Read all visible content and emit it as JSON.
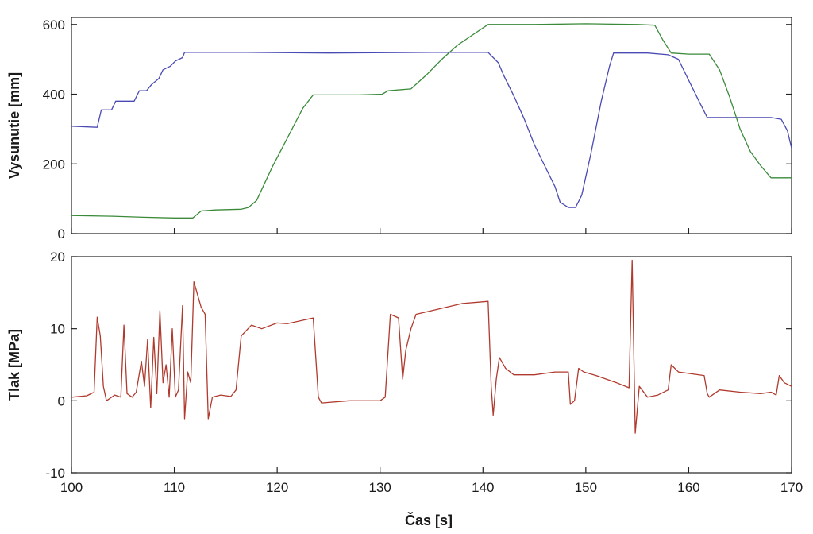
{
  "chart_data": [
    {
      "type": "line",
      "ylabel": "Vysunutie [mm]",
      "xlim": [
        100,
        170
      ],
      "ylim": [
        0,
        620
      ],
      "yticks": [
        "0",
        "200",
        "400",
        "600"
      ],
      "grid": false,
      "series": [
        {
          "color": "#4a4ab4",
          "points": [
            [
              100,
              308
            ],
            [
              102.5,
              305
            ],
            [
              102.9,
              355
            ],
            [
              103.9,
              355
            ],
            [
              104.3,
              380
            ],
            [
              106.1,
              380
            ],
            [
              106.6,
              410
            ],
            [
              107.3,
              410
            ],
            [
              107.8,
              428
            ],
            [
              108.5,
              445
            ],
            [
              108.9,
              470
            ],
            [
              109.6,
              480
            ],
            [
              110.1,
              495
            ],
            [
              110.8,
              505
            ],
            [
              111,
              520
            ],
            [
              117,
              520
            ],
            [
              125,
              518
            ],
            [
              135,
              520
            ],
            [
              140.5,
              520
            ],
            [
              141.5,
              490
            ],
            [
              142,
              455
            ],
            [
              143,
              395
            ],
            [
              144,
              330
            ],
            [
              145,
              255
            ],
            [
              146,
              195
            ],
            [
              147,
              135
            ],
            [
              147.5,
              90
            ],
            [
              148.3,
              75
            ],
            [
              149,
              75
            ],
            [
              149.6,
              110
            ],
            [
              150.5,
              230
            ],
            [
              151.5,
              380
            ],
            [
              152.3,
              480
            ],
            [
              152.7,
              518
            ],
            [
              156,
              518
            ],
            [
              158,
              513
            ],
            [
              159,
              500
            ],
            [
              160,
              440
            ],
            [
              161,
              380
            ],
            [
              161.8,
              333
            ],
            [
              163,
              333
            ],
            [
              168,
              333
            ],
            [
              169,
              328
            ],
            [
              169.6,
              295
            ],
            [
              170,
              245
            ]
          ]
        },
        {
          "color": "#3a8a3a",
          "points": [
            [
              100,
              52
            ],
            [
              104,
              50
            ],
            [
              107,
              47
            ],
            [
              110,
              45
            ],
            [
              111.8,
              45
            ],
            [
              112.6,
              65
            ],
            [
              114,
              68
            ],
            [
              116.5,
              70
            ],
            [
              117.2,
              75
            ],
            [
              118,
              95
            ],
            [
              119.5,
              190
            ],
            [
              121,
              275
            ],
            [
              122.5,
              360
            ],
            [
              123.5,
              398
            ],
            [
              125,
              398
            ],
            [
              128,
              398
            ],
            [
              130.2,
              400
            ],
            [
              130.8,
              410
            ],
            [
              133,
              415
            ],
            [
              134.5,
              455
            ],
            [
              136,
              500
            ],
            [
              137.5,
              540
            ],
            [
              139,
              570
            ],
            [
              140.5,
              600
            ],
            [
              145,
              600
            ],
            [
              150,
              602
            ],
            [
              155,
              600
            ],
            [
              156.7,
              598
            ],
            [
              157.5,
              555
            ],
            [
              158.3,
              518
            ],
            [
              160,
              515
            ],
            [
              162,
              515
            ],
            [
              163,
              470
            ],
            [
              164,
              390
            ],
            [
              165,
              300
            ],
            [
              166,
              235
            ],
            [
              167,
              195
            ],
            [
              168,
              160
            ],
            [
              170,
              160
            ]
          ]
        }
      ]
    },
    {
      "type": "line",
      "xlabel": "Čas [s]",
      "ylabel": "Tlak [MPa]",
      "xlim": [
        100,
        170
      ],
      "ylim": [
        -10,
        20
      ],
      "xticks": [
        "100",
        "110",
        "120",
        "130",
        "140",
        "150",
        "160",
        "170"
      ],
      "yticks": [
        "-10",
        "0",
        "10",
        "20"
      ],
      "grid": false,
      "series": [
        {
          "color": "#b03a2e",
          "points": [
            [
              100,
              0.5
            ],
            [
              101.5,
              0.7
            ],
            [
              102.2,
              1.2
            ],
            [
              102.5,
              11.6
            ],
            [
              102.8,
              9.0
            ],
            [
              103.1,
              2.0
            ],
            [
              103.4,
              0.0
            ],
            [
              104.2,
              0.8
            ],
            [
              104.8,
              0.5
            ],
            [
              105.1,
              10.5
            ],
            [
              105.4,
              1.0
            ],
            [
              105.9,
              0.5
            ],
            [
              106.3,
              1.2
            ],
            [
              106.8,
              5.5
            ],
            [
              107.1,
              2.0
            ],
            [
              107.4,
              8.5
            ],
            [
              107.7,
              -1.0
            ],
            [
              108.0,
              8.8
            ],
            [
              108.3,
              1.0
            ],
            [
              108.6,
              12.5
            ],
            [
              108.9,
              2.5
            ],
            [
              109.2,
              5.0
            ],
            [
              109.5,
              0.5
            ],
            [
              109.8,
              10.0
            ],
            [
              110.1,
              0.5
            ],
            [
              110.4,
              1.5
            ],
            [
              110.8,
              13.2
            ],
            [
              111.0,
              -2.5
            ],
            [
              111.3,
              4.0
            ],
            [
              111.6,
              2.5
            ],
            [
              111.9,
              16.5
            ],
            [
              112.3,
              14.5
            ],
            [
              112.6,
              13.0
            ],
            [
              113.0,
              12.0
            ],
            [
              113.3,
              -2.5
            ],
            [
              113.7,
              0.5
            ],
            [
              114.5,
              0.8
            ],
            [
              115.5,
              0.6
            ],
            [
              116.0,
              1.5
            ],
            [
              116.5,
              9.0
            ],
            [
              117.5,
              10.5
            ],
            [
              118.5,
              10.0
            ],
            [
              120,
              10.8
            ],
            [
              121,
              10.7
            ],
            [
              123.5,
              11.5
            ],
            [
              124.0,
              0.5
            ],
            [
              124.3,
              -0.3
            ],
            [
              127,
              0.0
            ],
            [
              130,
              0.0
            ],
            [
              130.5,
              0.5
            ],
            [
              131.0,
              12.0
            ],
            [
              131.8,
              11.5
            ],
            [
              132.2,
              3.0
            ],
            [
              132.5,
              7.0
            ],
            [
              133.0,
              10.0
            ],
            [
              133.5,
              12.0
            ],
            [
              135,
              12.5
            ],
            [
              138,
              13.5
            ],
            [
              140.5,
              13.8
            ],
            [
              140.8,
              2.0
            ],
            [
              141.0,
              -2.0
            ],
            [
              141.3,
              3.0
            ],
            [
              141.6,
              6.0
            ],
            [
              142.2,
              4.5
            ],
            [
              143,
              3.6
            ],
            [
              145,
              3.6
            ],
            [
              147,
              4.0
            ],
            [
              148.3,
              4.0
            ],
            [
              148.5,
              -0.5
            ],
            [
              148.9,
              0.0
            ],
            [
              149.3,
              4.5
            ],
            [
              149.8,
              4.0
            ],
            [
              151,
              3.5
            ],
            [
              153,
              2.5
            ],
            [
              154.2,
              1.8
            ],
            [
              154.5,
              19.5
            ],
            [
              154.8,
              -4.5
            ],
            [
              155.2,
              2.0
            ],
            [
              156,
              0.5
            ],
            [
              157,
              0.8
            ],
            [
              158,
              1.5
            ],
            [
              158.3,
              5.0
            ],
            [
              159,
              4.0
            ],
            [
              161.5,
              3.5
            ],
            [
              161.8,
              1.0
            ],
            [
              162,
              0.5
            ],
            [
              163,
              1.5
            ],
            [
              165,
              1.2
            ],
            [
              167,
              1.0
            ],
            [
              168,
              1.2
            ],
            [
              168.5,
              0.8
            ],
            [
              168.8,
              3.5
            ],
            [
              169.3,
              2.5
            ],
            [
              170,
              2.0
            ]
          ]
        }
      ]
    }
  ]
}
